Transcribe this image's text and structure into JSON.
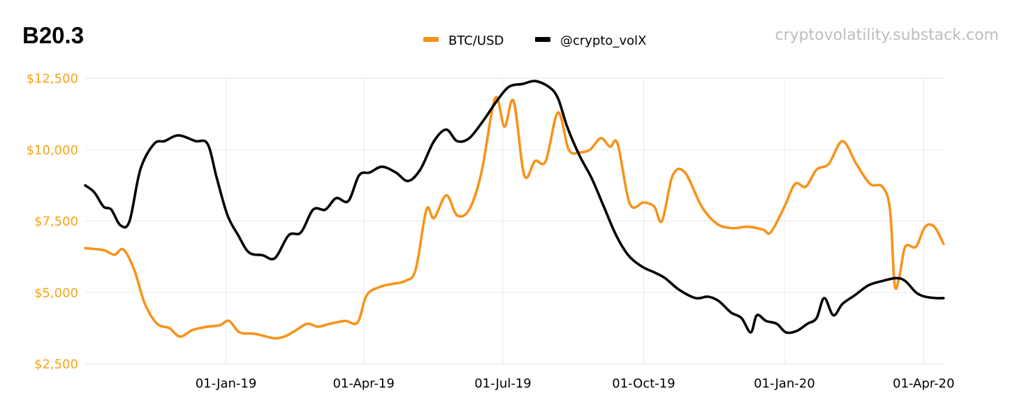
{
  "chart_data": {
    "type": "line",
    "title": "B20.3",
    "source": "cryptovolatility.substack.com",
    "legend_position": "top-center",
    "grid": true,
    "x_range": [
      "2018-10-01",
      "2020-04-15"
    ],
    "ylim": [
      2500,
      12500
    ],
    "y_ticks": [
      {
        "value": 2500,
        "label": "$2,500"
      },
      {
        "value": 5000,
        "label": "$5,000"
      },
      {
        "value": 7500,
        "label": "$7,500"
      },
      {
        "value": 10000,
        "label": "$10,000"
      },
      {
        "value": 12500,
        "label": "$12,500"
      }
    ],
    "x_ticks": [
      {
        "date": "2019-01-01",
        "label": "01-Jan-19"
      },
      {
        "date": "2019-04-01",
        "label": "01-Apr-19"
      },
      {
        "date": "2019-07-01",
        "label": "01-Jul-19"
      },
      {
        "date": "2019-10-01",
        "label": "01-Oct-19"
      },
      {
        "date": "2020-01-01",
        "label": "01-Jan-20"
      },
      {
        "date": "2020-04-01",
        "label": "01-Apr-20"
      }
    ],
    "axis_color": "#f5a31a",
    "series": [
      {
        "name": "BTC/USD",
        "color": "#f7931a",
        "points": [
          [
            "2018-10-01",
            6550
          ],
          [
            "2018-10-13",
            6480
          ],
          [
            "2018-10-20",
            6320
          ],
          [
            "2018-10-26",
            6500
          ],
          [
            "2018-11-02",
            5800
          ],
          [
            "2018-11-09",
            4600
          ],
          [
            "2018-11-17",
            3900
          ],
          [
            "2018-11-25",
            3750
          ],
          [
            "2018-12-02",
            3450
          ],
          [
            "2018-12-10",
            3680
          ],
          [
            "2018-12-20",
            3800
          ],
          [
            "2018-12-28",
            3850
          ],
          [
            "2019-01-03",
            4000
          ],
          [
            "2019-01-10",
            3600
          ],
          [
            "2019-01-20",
            3550
          ],
          [
            "2019-02-01",
            3400
          ],
          [
            "2019-02-08",
            3450
          ],
          [
            "2019-02-15",
            3650
          ],
          [
            "2019-02-23",
            3900
          ],
          [
            "2019-03-02",
            3800
          ],
          [
            "2019-03-10",
            3900
          ],
          [
            "2019-03-20",
            4000
          ],
          [
            "2019-03-28",
            3950
          ],
          [
            "2019-04-03",
            4900
          ],
          [
            "2019-04-12",
            5200
          ],
          [
            "2019-04-20",
            5300
          ],
          [
            "2019-04-28",
            5400
          ],
          [
            "2019-05-05",
            5800
          ],
          [
            "2019-05-12",
            7900
          ],
          [
            "2019-05-17",
            7600
          ],
          [
            "2019-05-25",
            8400
          ],
          [
            "2019-06-01",
            7700
          ],
          [
            "2019-06-09",
            7900
          ],
          [
            "2019-06-17",
            9200
          ],
          [
            "2019-06-26",
            11800
          ],
          [
            "2019-07-02",
            10800
          ],
          [
            "2019-07-08",
            11700
          ],
          [
            "2019-07-15",
            9100
          ],
          [
            "2019-07-22",
            9600
          ],
          [
            "2019-07-29",
            9600
          ],
          [
            "2019-08-06",
            11300
          ],
          [
            "2019-08-13",
            10000
          ],
          [
            "2019-08-20",
            9900
          ],
          [
            "2019-08-27",
            10000
          ],
          [
            "2019-09-03",
            10400
          ],
          [
            "2019-09-09",
            10100
          ],
          [
            "2019-09-14",
            10200
          ],
          [
            "2019-09-22",
            8100
          ],
          [
            "2019-10-01",
            8150
          ],
          [
            "2019-10-08",
            8000
          ],
          [
            "2019-10-13",
            7500
          ],
          [
            "2019-10-20",
            9100
          ],
          [
            "2019-10-28",
            9200
          ],
          [
            "2019-11-08",
            8000
          ],
          [
            "2019-11-18",
            7400
          ],
          [
            "2019-11-28",
            7250
          ],
          [
            "2019-12-08",
            7300
          ],
          [
            "2019-12-18",
            7200
          ],
          [
            "2019-12-23",
            7100
          ],
          [
            "2020-01-01",
            8000
          ],
          [
            "2020-01-08",
            8800
          ],
          [
            "2020-01-15",
            8700
          ],
          [
            "2020-01-22",
            9300
          ],
          [
            "2020-01-30",
            9500
          ],
          [
            "2020-02-08",
            10300
          ],
          [
            "2020-02-17",
            9500
          ],
          [
            "2020-02-26",
            8800
          ],
          [
            "2020-03-05",
            8700
          ],
          [
            "2020-03-10",
            7900
          ],
          [
            "2020-03-13",
            5300
          ],
          [
            "2020-03-16",
            5500
          ],
          [
            "2020-03-20",
            6600
          ],
          [
            "2020-03-27",
            6600
          ],
          [
            "2020-04-02",
            7300
          ],
          [
            "2020-04-08",
            7300
          ],
          [
            "2020-04-14",
            6700
          ]
        ]
      },
      {
        "name": "@crypto_volX",
        "color": "#000000",
        "points": [
          [
            "2018-10-01",
            8750
          ],
          [
            "2018-10-07",
            8500
          ],
          [
            "2018-10-13",
            8000
          ],
          [
            "2018-10-18",
            7900
          ],
          [
            "2018-10-24",
            7350
          ],
          [
            "2018-10-30",
            7500
          ],
          [
            "2018-11-06",
            9300
          ],
          [
            "2018-11-15",
            10200
          ],
          [
            "2018-11-22",
            10300
          ],
          [
            "2018-12-01",
            10500
          ],
          [
            "2018-12-12",
            10300
          ],
          [
            "2018-12-20",
            10200
          ],
          [
            "2018-12-26",
            9000
          ],
          [
            "2019-01-02",
            7700
          ],
          [
            "2019-01-09",
            7000
          ],
          [
            "2019-01-16",
            6400
          ],
          [
            "2019-01-25",
            6300
          ],
          [
            "2019-02-02",
            6200
          ],
          [
            "2019-02-11",
            7000
          ],
          [
            "2019-02-19",
            7100
          ],
          [
            "2019-02-27",
            7900
          ],
          [
            "2019-03-07",
            7900
          ],
          [
            "2019-03-14",
            8300
          ],
          [
            "2019-03-22",
            8200
          ],
          [
            "2019-03-29",
            9100
          ],
          [
            "2019-04-05",
            9200
          ],
          [
            "2019-04-13",
            9400
          ],
          [
            "2019-04-22",
            9200
          ],
          [
            "2019-04-30",
            8900
          ],
          [
            "2019-05-08",
            9300
          ],
          [
            "2019-05-17",
            10300
          ],
          [
            "2019-05-25",
            10700
          ],
          [
            "2019-06-01",
            10300
          ],
          [
            "2019-06-09",
            10400
          ],
          [
            "2019-06-18",
            11000
          ],
          [
            "2019-06-27",
            11700
          ],
          [
            "2019-07-05",
            12200
          ],
          [
            "2019-07-14",
            12300
          ],
          [
            "2019-07-22",
            12400
          ],
          [
            "2019-07-31",
            12200
          ],
          [
            "2019-08-06",
            11800
          ],
          [
            "2019-08-12",
            10800
          ],
          [
            "2019-08-20",
            9800
          ],
          [
            "2019-08-28",
            9000
          ],
          [
            "2019-09-05",
            8000
          ],
          [
            "2019-09-13",
            7000
          ],
          [
            "2019-09-21",
            6300
          ],
          [
            "2019-09-30",
            5900
          ],
          [
            "2019-10-08",
            5700
          ],
          [
            "2019-10-15",
            5500
          ],
          [
            "2019-10-24",
            5100
          ],
          [
            "2019-11-04",
            4800
          ],
          [
            "2019-11-12",
            4850
          ],
          [
            "2019-11-19",
            4700
          ],
          [
            "2019-11-27",
            4300
          ],
          [
            "2019-12-04",
            4100
          ],
          [
            "2019-12-10",
            3600
          ],
          [
            "2019-12-14",
            4200
          ],
          [
            "2019-12-20",
            4000
          ],
          [
            "2019-12-27",
            3900
          ],
          [
            "2020-01-02",
            3600
          ],
          [
            "2020-01-09",
            3650
          ],
          [
            "2020-01-16",
            3900
          ],
          [
            "2020-01-22",
            4100
          ],
          [
            "2020-01-27",
            4800
          ],
          [
            "2020-02-02",
            4200
          ],
          [
            "2020-02-08",
            4600
          ],
          [
            "2020-02-16",
            4900
          ],
          [
            "2020-02-25",
            5250
          ],
          [
            "2020-03-05",
            5400
          ],
          [
            "2020-03-14",
            5500
          ],
          [
            "2020-03-20",
            5400
          ],
          [
            "2020-03-27",
            5000
          ],
          [
            "2020-04-02",
            4850
          ],
          [
            "2020-04-09",
            4800
          ],
          [
            "2020-04-14",
            4800
          ]
        ]
      }
    ]
  }
}
